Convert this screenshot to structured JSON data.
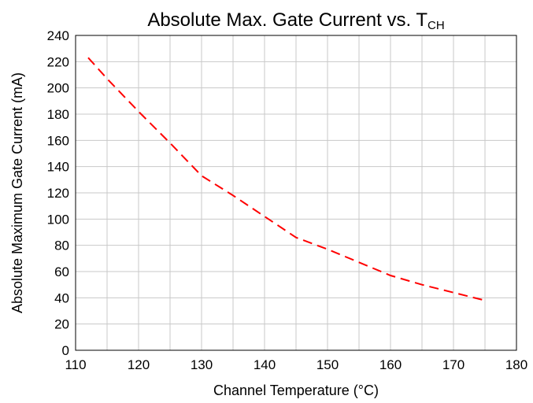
{
  "chart_data": {
    "type": "line",
    "title": "Absolute Max. Gate Current vs. T",
    "title_subscript": "CH",
    "xlabel": "Channel Temperature (°C)",
    "ylabel": "Absolute Maximum Gate Current (mA)",
    "xlim": [
      110,
      180
    ],
    "ylim": [
      0,
      240
    ],
    "xticks": [
      110,
      120,
      130,
      140,
      150,
      160,
      170,
      180
    ],
    "yticks": [
      0,
      20,
      40,
      60,
      80,
      100,
      120,
      140,
      160,
      180,
      200,
      220,
      240
    ],
    "x_minor_grid_step": 5,
    "grid": true,
    "line_style": "dashed",
    "series": [
      {
        "color": "#ff0000",
        "x": [
          112,
          115,
          120,
          125,
          130,
          135,
          140,
          145,
          150,
          155,
          160,
          165,
          170,
          175
        ],
        "y": [
          223,
          207,
          182,
          158,
          133,
          118,
          102,
          86,
          77,
          67,
          57,
          50,
          44,
          38
        ]
      }
    ]
  }
}
